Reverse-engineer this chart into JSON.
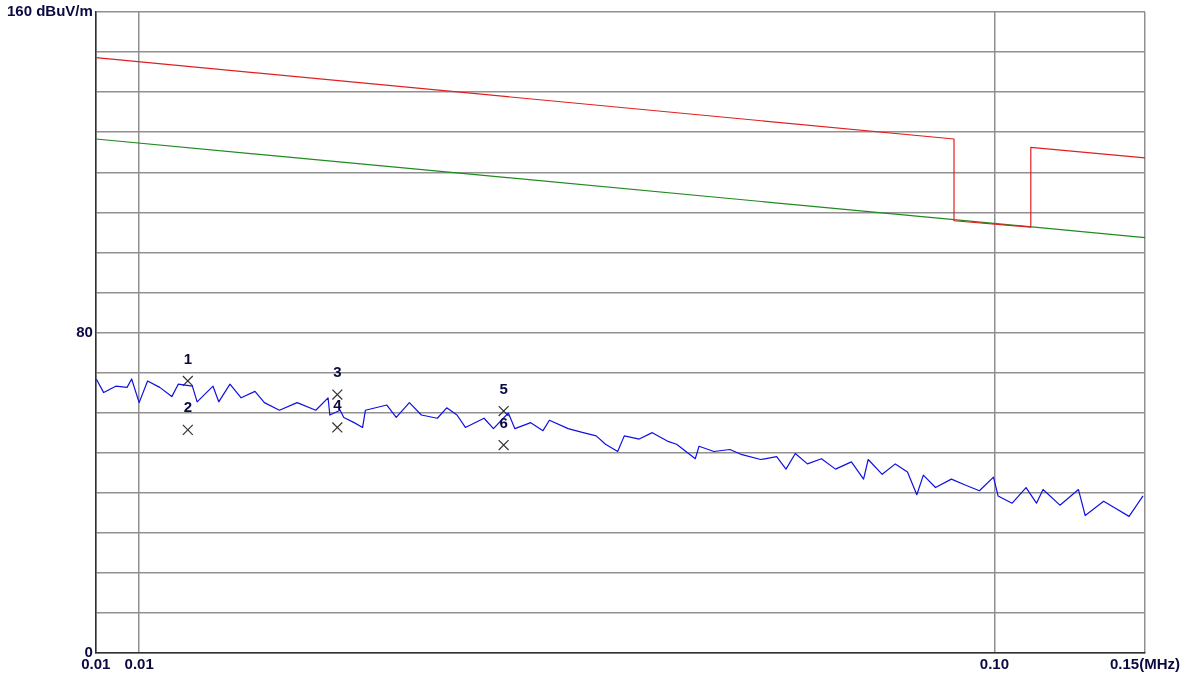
{
  "chart_data": {
    "type": "line",
    "xlabel": null,
    "log": "x",
    "grid": true,
    "legend": false,
    "xlim": [
      0.0089,
      0.15
    ],
    "xticks": [
      {
        "value": 0.0089,
        "label": "0.01"
      },
      {
        "value": 0.01,
        "label": "0.01"
      },
      {
        "value": 0.1,
        "label": "0.10"
      },
      {
        "value": 0.15,
        "label": "0.15(MHz)"
      }
    ],
    "ylim": [
      0,
      160
    ],
    "yticks": [
      0,
      {
        "value": 10,
        "label": null
      },
      {
        "value": 20,
        "label": null
      },
      {
        "value": 30,
        "label": null
      },
      {
        "value": 40,
        "label": null
      },
      {
        "value": 50,
        "label": null
      },
      {
        "value": 60,
        "label": null
      },
      {
        "value": 70,
        "label": null
      },
      80,
      {
        "value": 90,
        "label": null
      },
      {
        "value": 100,
        "label": null
      },
      {
        "value": 110,
        "label": null
      },
      {
        "value": 120,
        "label": null
      },
      {
        "value": 130,
        "label": null
      },
      {
        "value": 140,
        "label": null
      },
      {
        "value": 150,
        "label": null
      },
      {
        "value": 160,
        "label": "160 dBuV/m"
      }
    ],
    "series": [
      {
        "color": "#e02020",
        "marker": "none",
        "x": [
          0.0089,
          0.0897,
          0.0897,
          0.1103,
          0.1103,
          0.15
        ],
        "values": [
          148.6,
          128.3,
          107.9,
          106.3,
          126.2,
          123.6
        ]
      },
      {
        "color": "#208a20",
        "marker": "none",
        "x": [
          0.0089,
          0.15
        ],
        "values": [
          128.3,
          103.7
        ]
      },
      {
        "color": "#1010e0",
        "marker": "none",
        "x": [
          0.00891,
          0.00909,
          0.00939,
          0.00968,
          0.0098,
          0.01,
          0.01023,
          0.01057,
          0.01092,
          0.01111,
          0.01154,
          0.01169,
          0.0122,
          0.01239,
          0.01277,
          0.01316,
          0.01366,
          0.01401,
          0.01459,
          0.0153,
          0.01609,
          0.01663,
          0.01671,
          0.01718,
          0.01735,
          0.01784,
          0.01825,
          0.01839,
          0.01948,
          0.01998,
          0.0207,
          0.02138,
          0.02232,
          0.02289,
          0.02353,
          0.02407,
          0.02531,
          0.02596,
          0.02702,
          0.0275,
          0.0287,
          0.02966,
          0.03018,
          0.03174,
          0.03305,
          0.03423,
          0.0351,
          0.03627,
          0.03692,
          0.03843,
          0.03981,
          0.04145,
          0.0425,
          0.0447,
          0.04515,
          0.047,
          0.04906,
          0.05069,
          0.05331,
          0.05564,
          0.05706,
          0.05851,
          0.06045,
          0.06278,
          0.0652,
          0.06805,
          0.07031,
          0.0712,
          0.07393,
          0.07658,
          0.07914,
          0.08115,
          0.08259,
          0.08534,
          0.08907,
          0.09273,
          0.09605,
          0.09975,
          0.101,
          0.1049,
          0.1089,
          0.112,
          0.114,
          0.1193,
          0.1254,
          0.1277,
          0.1342,
          0.1437,
          0.1492
        ],
        "values": [
          68.4,
          65.0,
          66.6,
          66.3,
          68.4,
          62.5,
          67.9,
          66.3,
          64.0,
          67.1,
          66.6,
          62.7,
          66.6,
          62.7,
          67.1,
          63.7,
          65.3,
          62.5,
          60.6,
          62.5,
          60.6,
          63.7,
          59.4,
          60.6,
          58.8,
          57.5,
          56.3,
          60.6,
          61.9,
          58.8,
          62.5,
          59.4,
          58.6,
          61.2,
          59.4,
          56.3,
          58.6,
          56.0,
          59.9,
          56.0,
          57.5,
          55.5,
          58.1,
          56.0,
          55.0,
          54.2,
          52.1,
          50.3,
          54.2,
          53.4,
          55.0,
          52.9,
          52.1,
          48.5,
          51.6,
          50.3,
          50.8,
          49.5,
          48.3,
          49.0,
          45.9,
          49.8,
          47.2,
          48.5,
          45.9,
          47.7,
          43.4,
          48.3,
          44.6,
          47.2,
          45.2,
          39.5,
          44.4,
          41.3,
          43.4,
          41.8,
          40.5,
          43.9,
          39.2,
          37.4,
          41.3,
          37.4,
          40.8,
          36.9,
          40.8,
          34.3,
          37.9,
          34.1,
          39.2
        ]
      },
      {
        "type": "scatter",
        "color": "#333333",
        "marker": "cross",
        "x": [
          0.0114,
          0.0114,
          0.01705,
          0.01705,
          0.02668,
          0.02668
        ],
        "values": [
          67.9,
          55.7,
          64.5,
          56.3,
          60.4,
          51.9
        ]
      }
    ],
    "annotations": [
      {
        "text": "1",
        "x": 0.0114,
        "y": 67.9
      },
      {
        "text": "2",
        "x": 0.0114,
        "y": 55.7
      },
      {
        "text": "3",
        "x": 0.01705,
        "y": 64.5
      },
      {
        "text": "4",
        "x": 0.01705,
        "y": 56.3
      },
      {
        "text": "5",
        "x": 0.02668,
        "y": 60.4
      },
      {
        "text": "6",
        "x": 0.02668,
        "y": 51.9
      }
    ]
  }
}
